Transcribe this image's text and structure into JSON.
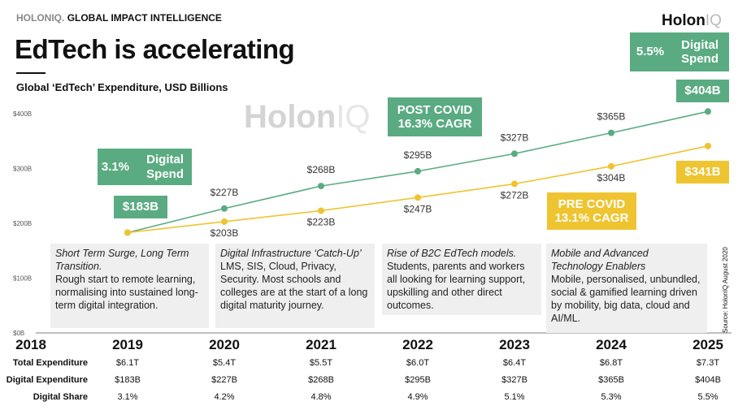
{
  "header": {
    "brand_gray": "HOLONIQ.",
    "brand_dark": "GLOBAL IMPACT INTELLIGENCE",
    "title": "EdTech is accelerating",
    "subtitle": "Global ‘EdTech’ Expenditure, USD Billions",
    "logo_main": "Holon",
    "logo_iq": "IQ"
  },
  "watermark": {
    "main": "Holon",
    "iq": "IQ"
  },
  "badges": {
    "start_share_pct": "3.1%",
    "start_share_label": "Digital Spend",
    "start_value": "$183B",
    "post_covid": "POST COVID",
    "post_cagr": "16.3% CAGR",
    "end_share_pct": "5.5%",
    "end_share_label": "Digital Spend",
    "end_value": "$404B",
    "pre_covid": "PRE COVID",
    "pre_cagr": "13.1% CAGR",
    "pre_end_value": "$341B"
  },
  "annotations": [
    {
      "title": "Short Term Surge, Long Term Transition.",
      "body": "Rough start to remote learning,  normalising into sustained long-term digital integration."
    },
    {
      "title": "Digital Infrastructure ‘Catch-Up’",
      "body": "LMS, SIS, Cloud, Privacy, Security. Most schools and colleges are at the start of a long digital maturity journey."
    },
    {
      "title": "Rise of B2C EdTech models.",
      "body": "Students, parents and workers all looking for learning support, upskilling and other direct outcomes."
    },
    {
      "title": "Mobile and Advanced Technology Enablers",
      "body": "Mobile, personalised, unbundled, social & gamified learning driven by mobility, big data, cloud and AI/ML."
    }
  ],
  "source": "Source: HolonIQ August 2020",
  "table": {
    "row_labels": [
      "Total Expenditure",
      "Digital Expenditure",
      "Digital Share"
    ],
    "total": [
      "$6.1T",
      "$5.4T",
      "$5.5T",
      "$6.0T",
      "$6.4T",
      "$6.8T",
      "$7.3T"
    ],
    "digital": [
      "$183B",
      "$227B",
      "$268B",
      "$295B",
      "$327B",
      "$365B",
      "$404B"
    ],
    "share": [
      "3.1%",
      "4.2%",
      "4.8%",
      "4.9%",
      "5.1%",
      "5.3%",
      "5.5%"
    ]
  },
  "chart_data": {
    "type": "line",
    "title": "EdTech is accelerating",
    "subtitle": "Global ‘EdTech’ Expenditure, USD Billions",
    "x": [
      "2018",
      "2019",
      "2020",
      "2021",
      "2022",
      "2023",
      "2024",
      "2025"
    ],
    "yticks": [
      "$0B",
      "$100B",
      "$200B",
      "$300B",
      "$400B"
    ],
    "ylim": [
      0,
      400
    ],
    "grid": false,
    "colors": {
      "post": "#5aab82",
      "pre": "#efc431"
    },
    "series": [
      {
        "key": "post",
        "values": [
          null,
          183,
          227,
          268,
          295,
          327,
          365,
          404
        ],
        "labels": [
          "",
          "",
          "$227B",
          "$268B",
          "$295B",
          "$327B",
          "$365B",
          ""
        ]
      },
      {
        "key": "pre",
        "values": [
          null,
          183,
          203,
          223,
          247,
          272,
          304,
          341
        ],
        "labels": [
          "",
          "",
          "$203B",
          "$223B",
          "$247B",
          "$272B",
          "$304B",
          ""
        ]
      }
    ]
  }
}
